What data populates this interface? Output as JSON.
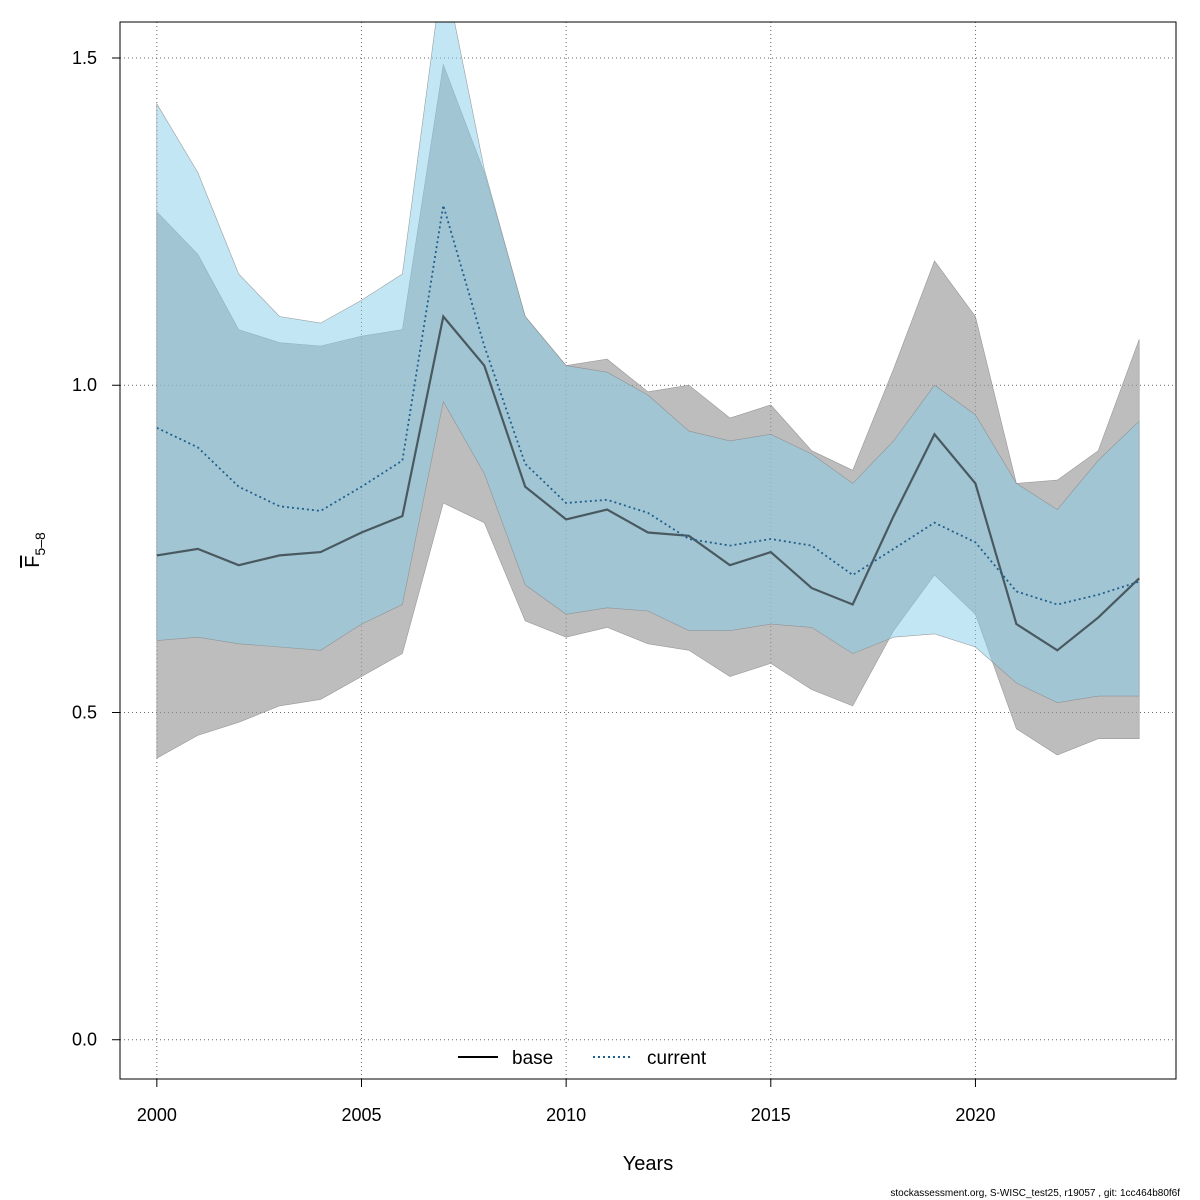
{
  "chart_data": {
    "type": "line",
    "xlabel": "Years",
    "ylabel": {
      "main": "F",
      "sub": "5–8"
    },
    "xlim": [
      1999.1,
      2024.9
    ],
    "ylim": [
      -0.06,
      1.555
    ],
    "x_ticks": [
      2000,
      2005,
      2010,
      2015,
      2020
    ],
    "y_ticks": [
      0.0,
      0.5,
      1.0,
      1.5
    ],
    "y_tick_labels": [
      "0.0",
      "0.5",
      "1.0",
      "1.5"
    ],
    "grid": true,
    "legend": {
      "placement": "bottom-center",
      "entries": [
        {
          "name": "base",
          "style": "solid",
          "color": "#000000"
        },
        {
          "name": "current",
          "style": "dotted",
          "color": "#1f5f8b"
        }
      ]
    },
    "colors": {
      "base_band": "#999999",
      "current_band": "#87ceeb",
      "base_line": "#000000",
      "current_line": "#1f5f8b"
    },
    "x": [
      2000,
      2001,
      2002,
      2003,
      2004,
      2005,
      2006,
      2007,
      2008,
      2009,
      2010,
      2011,
      2012,
      2013,
      2014,
      2015,
      2016,
      2017,
      2018,
      2019,
      2020,
      2021,
      2022,
      2023,
      2024
    ],
    "series": [
      {
        "name": "base",
        "values": [
          0.74,
          0.75,
          0.725,
          0.74,
          0.745,
          0.775,
          0.8,
          1.105,
          1.03,
          0.845,
          0.795,
          0.81,
          0.775,
          0.77,
          0.725,
          0.745,
          0.69,
          0.665,
          0.8,
          0.925,
          0.85,
          0.635,
          0.595,
          0.645,
          0.705
        ],
        "lower": [
          0.43,
          0.465,
          0.485,
          0.51,
          0.52,
          0.555,
          0.59,
          0.82,
          0.79,
          0.64,
          0.615,
          0.63,
          0.605,
          0.595,
          0.555,
          0.575,
          0.535,
          0.51,
          0.625,
          0.71,
          0.65,
          0.475,
          0.435,
          0.46,
          0.46
        ],
        "upper": [
          1.265,
          1.2,
          1.085,
          1.065,
          1.06,
          1.075,
          1.085,
          1.49,
          1.325,
          1.105,
          1.03,
          1.04,
          0.99,
          1.0,
          0.95,
          0.97,
          0.9,
          0.87,
          1.025,
          1.19,
          1.105,
          0.85,
          0.855,
          0.9,
          1.07
        ]
      },
      {
        "name": "current",
        "values": [
          0.935,
          0.905,
          0.845,
          0.815,
          0.808,
          0.845,
          0.885,
          1.275,
          1.06,
          0.88,
          0.82,
          0.825,
          0.805,
          0.765,
          0.755,
          0.765,
          0.755,
          0.71,
          0.75,
          0.79,
          0.76,
          0.685,
          0.665,
          0.68,
          0.7
        ],
        "lower": [
          0.61,
          0.615,
          0.605,
          0.6,
          0.595,
          0.635,
          0.665,
          0.975,
          0.865,
          0.695,
          0.65,
          0.66,
          0.655,
          0.625,
          0.625,
          0.635,
          0.63,
          0.59,
          0.615,
          0.62,
          0.6,
          0.545,
          0.515,
          0.525,
          0.525
        ],
        "upper": [
          1.43,
          1.325,
          1.17,
          1.105,
          1.095,
          1.13,
          1.17,
          1.64,
          1.33,
          1.105,
          1.03,
          1.02,
          0.985,
          0.93,
          0.915,
          0.925,
          0.895,
          0.85,
          0.915,
          1.0,
          0.955,
          0.85,
          0.81,
          0.885,
          0.945
        ]
      }
    ]
  },
  "footer": "stockassessment.org, S-WISC_test25, r19057 , git: 1cc464b80f6f"
}
